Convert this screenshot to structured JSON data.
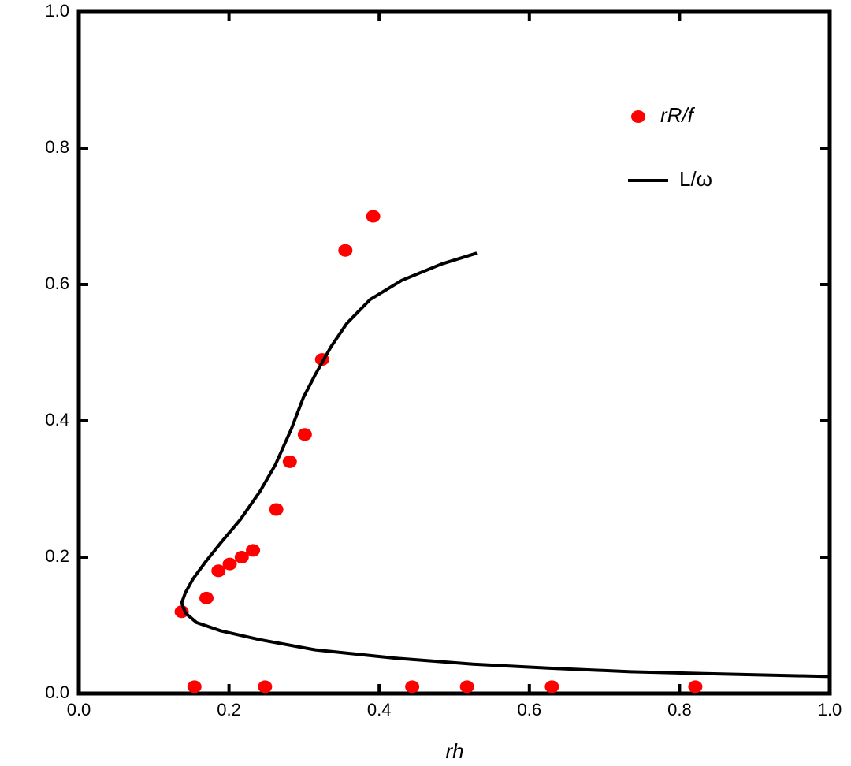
{
  "chart_data": {
    "type": "scatter-line",
    "x_label": "rh",
    "xlim": [
      0,
      1
    ],
    "ylim": [
      0,
      1
    ],
    "xticks": [
      {
        "value": 0,
        "label": "0.0"
      },
      0.2,
      0.4,
      0.6,
      0.8,
      {
        "value": 1,
        "label": "1.0"
      }
    ],
    "yticks": [
      {
        "value": 0,
        "label": "0.0"
      },
      0.2,
      0.4,
      0.6,
      0.8,
      {
        "value": 1,
        "label": "1.0"
      }
    ],
    "series": [
      {
        "name": "rR/f",
        "kind": "scatter",
        "color": "#ff0000",
        "x": [
          0.137,
          0.17,
          0.186,
          0.201,
          0.217,
          0.232,
          0.263,
          0.281,
          0.301,
          0.324,
          0.355,
          0.392,
          0.154,
          0.248,
          0.444,
          0.517,
          0.63,
          0.821
        ],
        "values": [
          0.12,
          0.14,
          0.18,
          0.19,
          0.2,
          0.21,
          0.27,
          0.34,
          0.38,
          0.49,
          0.65,
          0.7,
          0.01,
          0.01,
          0.01,
          0.01,
          0.01,
          0.01
        ]
      },
      {
        "name": "L/ω",
        "kind": "line",
        "color": "#000000",
        "x": [
          0.53,
          0.483,
          0.43,
          0.388,
          0.357,
          0.336,
          0.315,
          0.299,
          0.283,
          0.262,
          0.241,
          0.215,
          0.189,
          0.168,
          0.152,
          0.142,
          0.137,
          0.142,
          0.157,
          0.189,
          0.241,
          0.315,
          0.42,
          0.525,
          0.63,
          0.735,
          0.839,
          1.0
        ],
        "values": [
          0.646,
          0.63,
          0.606,
          0.578,
          0.543,
          0.509,
          0.468,
          0.434,
          0.388,
          0.336,
          0.296,
          0.255,
          0.221,
          0.192,
          0.168,
          0.148,
          0.133,
          0.118,
          0.104,
          0.092,
          0.079,
          0.064,
          0.052,
          0.043,
          0.037,
          0.032,
          0.029,
          0.025
        ]
      }
    ]
  }
}
